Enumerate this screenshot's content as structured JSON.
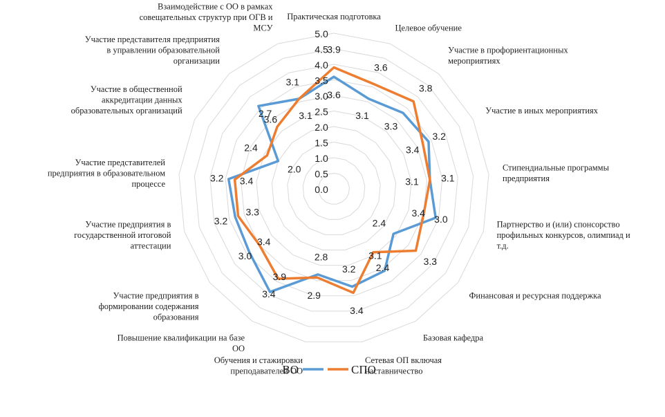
{
  "chart_data": {
    "type": "radar",
    "rmax": 5.0,
    "ticks": [
      "0.0",
      "0.5",
      "1.0",
      "1.5",
      "2.0",
      "2.5",
      "3.0",
      "3.5",
      "4.0",
      "4.5",
      "5.0"
    ],
    "categories": [
      [
        "Практическая подготовка"
      ],
      [
        "Целевое обучение"
      ],
      [
        "Участие в профориентационных",
        "мероприятиях"
      ],
      [
        "Участие в иных мероприятиях"
      ],
      [
        "Стипендиальные программы",
        "предприятия"
      ],
      [
        "Партнерство и (или) спонсорство",
        "профильных конкурсов, олимпиад и",
        "т.д."
      ],
      [
        "Финансовая и ресурсная поддержка"
      ],
      [
        "Базовая кафедра"
      ],
      [
        "Сетевая ОП включая",
        "наставничество"
      ],
      [
        "Обучения и стажировки",
        "преподавателей ОО"
      ],
      [
        "Повышение квалификации на базе",
        "ОО"
      ],
      [
        "Участие предприятия в",
        "формировании содержания",
        "образования"
      ],
      [
        "Участие предприятия в",
        "государственной итоговой",
        "аттестации"
      ],
      [
        "Участие представителей",
        "предприятия в образовательном",
        "процессе"
      ],
      [
        "Участие в общественной",
        "аккредитации данных",
        "образовательных организаций"
      ],
      [
        "Участие представителя предприятия",
        "в управлении образовательной",
        "организации"
      ],
      [
        "Взаимодействие с ОО в рамках",
        "совещательных структур при ОГВ и",
        "МСУ"
      ]
    ],
    "series": [
      {
        "name": "ВО",
        "color": "#5b9bd5",
        "values": [
          3.6,
          3.1,
          3.3,
          3.4,
          3.1,
          3.4,
          2.4,
          3.1,
          3.2,
          2.8,
          3.9,
          3.4,
          3.3,
          3.4,
          2.0,
          3.6,
          3.1
        ],
        "labels": [
          "3.6",
          "3.1",
          "3.3",
          "3.4",
          "3.1",
          "3.4",
          "2.4",
          "3.1",
          "3.2",
          "2.8",
          "3.9",
          "3.4",
          "3.3",
          "3.4",
          "2.0",
          "3.6",
          "3.1"
        ]
      },
      {
        "name": "СПО",
        "color": "#ed7d31",
        "values": [
          3.9,
          3.6,
          3.8,
          3.2,
          3.1,
          3.0,
          3.3,
          2.4,
          3.4,
          2.9,
          3.4,
          3.0,
          3.2,
          3.2,
          2.4,
          2.7,
          3.1
        ],
        "labels": [
          "3.9",
          "3.6",
          "3.8",
          "3.2",
          "3.1",
          "3.0",
          "3.3",
          "2.4",
          "3.4",
          "2.9",
          "3.4",
          "3.0",
          "3.2",
          "3.2",
          "2.4",
          "2.7",
          "3.1"
        ]
      }
    ],
    "legend": "bottom",
    "grid": true
  }
}
